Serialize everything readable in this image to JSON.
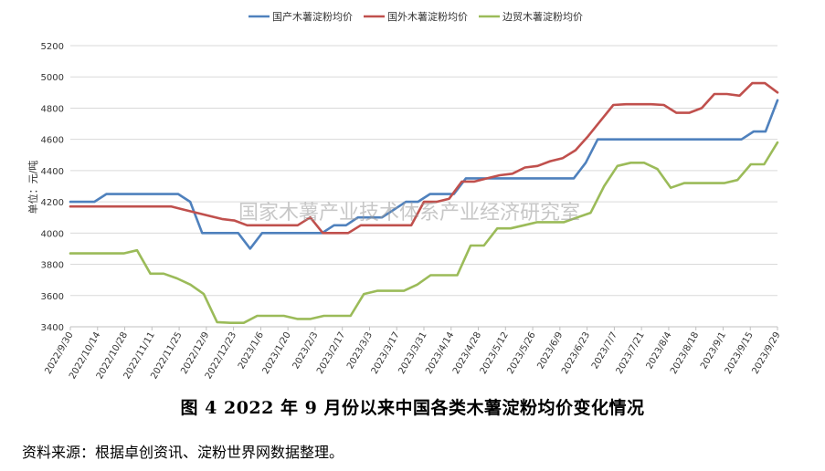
{
  "chart_data": {
    "type": "line",
    "ylabel": "单位：元/吨",
    "ylim": [
      3400,
      5200
    ],
    "yticks": [
      3400,
      3600,
      3800,
      4000,
      4200,
      4400,
      4600,
      4800,
      5000,
      5200
    ],
    "grid": true,
    "legend": "top",
    "x_labels": [
      "2022/9/30",
      "2022/10/14",
      "2022/10/28",
      "2022/11/11",
      "2022/11/25",
      "2022/12/9",
      "2022/12/23",
      "2023/1/6",
      "2023/1/20",
      "2023/2/3",
      "2023/2/17",
      "2023/3/3",
      "2023/3/17",
      "2023/3/31",
      "2023/4/14",
      "2023/4/28",
      "2023/5/12",
      "2023/5/26",
      "2023/6/9",
      "2023/6/23",
      "2023/7/7",
      "2023/7/21",
      "2023/8/4",
      "2023/8/18",
      "2023/9/1",
      "2023/9/15",
      "2023/9/29"
    ],
    "series": [
      {
        "name": "国产木薯淀粉均价",
        "color": "#4F81BD",
        "values": [
          4200,
          4200,
          4200,
          4250,
          4250,
          4250,
          4250,
          4250,
          4250,
          4250,
          4200,
          4000,
          4000,
          4000,
          4000,
          3900,
          4000,
          4000,
          4000,
          4000,
          4000,
          4000,
          4050,
          4050,
          4100,
          4100,
          4100,
          4150,
          4200,
          4200,
          4250,
          4250,
          4250,
          4350,
          4350,
          4350,
          4350,
          4350,
          4350,
          4350,
          4350,
          4350,
          4350,
          4450,
          4600,
          4600,
          4600,
          4600,
          4600,
          4600,
          4600,
          4600,
          4600,
          4600,
          4600,
          4600,
          4600,
          4650,
          4650,
          4850
        ]
      },
      {
        "name": "国外木薯淀粉均价",
        "color": "#C0504D",
        "values": [
          4170,
          4170,
          4170,
          4170,
          4170,
          4170,
          4170,
          4170,
          4170,
          4150,
          4130,
          4110,
          4090,
          4080,
          4050,
          4050,
          4050,
          4050,
          4050,
          4100,
          4000,
          4000,
          4000,
          4050,
          4050,
          4050,
          4050,
          4050,
          4200,
          4200,
          4220,
          4330,
          4330,
          4350,
          4370,
          4380,
          4420,
          4430,
          4460,
          4480,
          4530,
          4620,
          4720,
          4820,
          4825,
          4825,
          4825,
          4820,
          4770,
          4770,
          4800,
          4890,
          4890,
          4880,
          4960,
          4960,
          4900
        ]
      },
      {
        "name": "边贸木薯淀粉均价",
        "color": "#9BBB59",
        "values": [
          3870,
          3870,
          3870,
          3870,
          3870,
          3890,
          3740,
          3740,
          3710,
          3670,
          3610,
          3430,
          3425,
          3425,
          3470,
          3470,
          3470,
          3450,
          3450,
          3470,
          3470,
          3470,
          3610,
          3630,
          3630,
          3630,
          3670,
          3730,
          3730,
          3730,
          3920,
          3920,
          4030,
          4030,
          4050,
          4070,
          4070,
          4070,
          4100,
          4130,
          4300,
          4430,
          4450,
          4450,
          4410,
          4290,
          4320,
          4320,
          4320,
          4320,
          4340,
          4440,
          4440,
          4580
        ]
      }
    ]
  },
  "watermark": "国家木薯产业技术体系产业经济研究室",
  "caption": "图 4   2022 年 9 月份以来中国各类木薯淀粉均价变化情况",
  "source": "资料来源：根据卓创资讯、淀粉世界网数据整理。"
}
